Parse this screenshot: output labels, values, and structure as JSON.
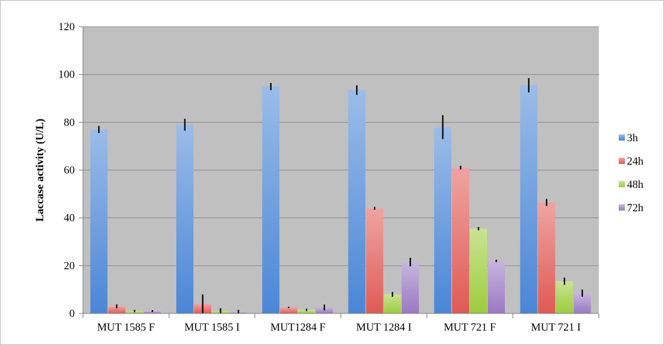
{
  "chart_data": {
    "type": "bar",
    "title": "",
    "xlabel": "",
    "ylabel": "Laccase activity (U/L)",
    "ylim": [
      0,
      120
    ],
    "yticks": [
      0,
      20,
      40,
      60,
      80,
      100,
      120
    ],
    "grid": true,
    "legend_position": "right",
    "categories": [
      "MUT 1585 F",
      "MUT 1585 I",
      "MUT1284 F",
      "MUT 1284 I",
      "MUT 721 F",
      "MUT 721 I"
    ],
    "series": [
      {
        "name": "3h",
        "color": "#4a86d6",
        "values": [
          77,
          79,
          95,
          93.5,
          78,
          95.5
        ],
        "errors": [
          1.5,
          2.5,
          1.5,
          2.0,
          5.0,
          3.0
        ]
      },
      {
        "name": "24h",
        "color": "#e05a55",
        "values": [
          3,
          4,
          2.5,
          44,
          61,
          46.5
        ],
        "errors": [
          0.8,
          4.0,
          0.3,
          0.6,
          0.8,
          1.5
        ]
      },
      {
        "name": "48h",
        "color": "#9ccc3c",
        "values": [
          1,
          1,
          1.5,
          8,
          35.5,
          13.5
        ],
        "errors": [
          0.5,
          1.2,
          0.5,
          1.0,
          0.7,
          1.5
        ]
      },
      {
        "name": "72h",
        "color": "#9a79c2",
        "values": [
          1,
          0.5,
          2.5,
          21.5,
          22,
          8.5
        ],
        "errors": [
          0.4,
          1.0,
          1.2,
          1.8,
          0.5,
          1.5
        ]
      }
    ]
  }
}
